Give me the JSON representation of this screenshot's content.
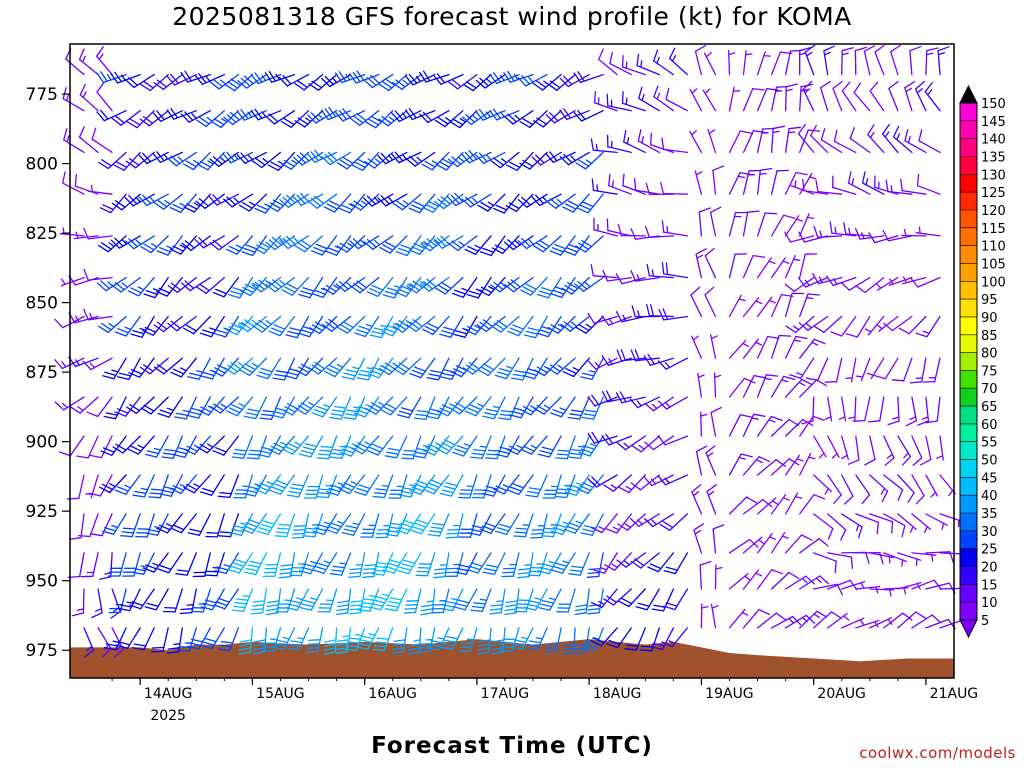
{
  "page": {
    "title": "2025081318 GFS forecast wind profile (kt) for KOMA",
    "credit": "coolwx.com/models"
  },
  "chart_data": {
    "type": "wind-barb profile",
    "title": "2025081318 GFS forecast wind profile (kt) for KOMA",
    "xlabel": "Forecast Time (UTC)",
    "ylabel": "",
    "y_axis": {
      "label": "",
      "inverted": true,
      "range": [
        985,
        757
      ],
      "ticks": [
        775,
        800,
        825,
        850,
        875,
        900,
        925,
        950,
        975
      ]
    },
    "x_axis": {
      "range_hours": [
        -9,
        180
      ],
      "ticks": [
        {
          "hour": 6,
          "label": "14AUG",
          "sublabel": "2025"
        },
        {
          "hour": 30,
          "label": "15AUG"
        },
        {
          "hour": 54,
          "label": "16AUG"
        },
        {
          "hour": 78,
          "label": "17AUG"
        },
        {
          "hour": 102,
          "label": "18AUG"
        },
        {
          "hour": 126,
          "label": "19AUG"
        },
        {
          "hour": 150,
          "label": "20AUG"
        },
        {
          "hour": 174,
          "label": "21AUG"
        }
      ]
    },
    "grid": false,
    "run_init": "2025081318",
    "pressure_levels": [
      768,
      781,
      796,
      811,
      826,
      841,
      855,
      870,
      884,
      898,
      912,
      926,
      940,
      953,
      967
    ],
    "time_step_hours": 3,
    "forecast_hours_start": -6,
    "terrain_color": "#a0522d",
    "terrain_pressure": [
      {
        "hour": -9,
        "p": 974
      },
      {
        "hour": 0,
        "p": 974
      },
      {
        "hour": 6,
        "p": 974
      },
      {
        "hour": 12,
        "p": 975
      },
      {
        "hour": 18,
        "p": 973
      },
      {
        "hour": 24,
        "p": 973
      },
      {
        "hour": 30,
        "p": 972
      },
      {
        "hour": 42,
        "p": 973
      },
      {
        "hour": 54,
        "p": 972
      },
      {
        "hour": 66,
        "p": 973
      },
      {
        "hour": 78,
        "p": 971
      },
      {
        "hour": 90,
        "p": 973
      },
      {
        "hour": 102,
        "p": 971
      },
      {
        "hour": 114,
        "p": 973
      },
      {
        "hour": 120,
        "p": 972
      },
      {
        "hour": 126,
        "p": 974
      },
      {
        "hour": 132,
        "p": 976
      },
      {
        "hour": 140,
        "p": 977
      },
      {
        "hour": 150,
        "p": 978
      },
      {
        "hour": 160,
        "p": 979
      },
      {
        "hour": 170,
        "p": 978
      },
      {
        "hour": 180,
        "p": 978
      }
    ],
    "regimes": [
      {
        "from_hour": -6,
        "to_hour": 3,
        "dir_top": 320,
        "dir_low": 160,
        "spd_top": 10,
        "spd_low": 12
      },
      {
        "from_hour": 3,
        "to_hour": 30,
        "dir_top": 240,
        "dir_low": 200,
        "spd_top": 22,
        "spd_low": 25
      },
      {
        "from_hour": 30,
        "to_hour": 78,
        "dir_top": 240,
        "dir_low": 195,
        "spd_top": 25,
        "spd_low": 40
      },
      {
        "from_hour": 78,
        "to_hour": 108,
        "dir_top": 240,
        "dir_low": 195,
        "spd_top": 22,
        "spd_low": 35
      },
      {
        "from_hour": 108,
        "to_hour": 126,
        "dir_top": 300,
        "dir_low": 210,
        "spd_top": 12,
        "spd_low": 18
      },
      {
        "from_hour": 126,
        "to_hour": 132,
        "dir_top": 340,
        "dir_low": 350,
        "spd_top": 8,
        "spd_low": 10
      },
      {
        "from_hour": 132,
        "to_hour": 150,
        "dir_top": 10,
        "dir_low": 50,
        "spd_top": 10,
        "spd_low": 10
      },
      {
        "from_hour": 150,
        "to_hour": 180,
        "dir_top": 350,
        "dir_low": 60,
        "spd_top": 12,
        "spd_low": 8
      }
    ],
    "colorbar": {
      "levels": [
        5,
        10,
        15,
        20,
        25,
        30,
        35,
        40,
        45,
        50,
        55,
        60,
        65,
        70,
        75,
        80,
        85,
        90,
        95,
        100,
        105,
        110,
        115,
        120,
        125,
        130,
        135,
        140,
        145,
        150
      ],
      "colors": [
        "#8000ff",
        "#6a00ff",
        "#3300ff",
        "#0000ee",
        "#0044ff",
        "#0070ff",
        "#0099ff",
        "#00bbff",
        "#00d4f0",
        "#00e8c8",
        "#00f0a0",
        "#00e080",
        "#10d020",
        "#40e000",
        "#a0f000",
        "#e8f800",
        "#ffff00",
        "#ffe000",
        "#ffc000",
        "#ffa000",
        "#ff8c00",
        "#ff7000",
        "#ff5500",
        "#ff2a00",
        "#ff0000",
        "#ff0040",
        "#ff0080",
        "#ff00b0",
        "#ff00d8",
        "#ff00ff"
      ],
      "over_color": "#000000",
      "under_color": "#8000ff"
    }
  }
}
